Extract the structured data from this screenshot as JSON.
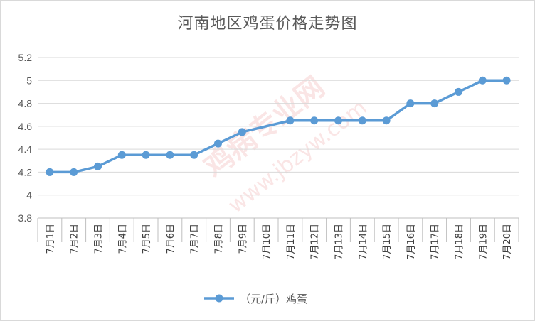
{
  "chart_data": {
    "type": "line",
    "title": "河南地区鸡蛋价格走势图",
    "categories": [
      "7月1日",
      "7月2日",
      "7月3日",
      "7月4日",
      "7月5日",
      "7月6日",
      "7月7日",
      "7月8日",
      "7月9日",
      "7月10日",
      "7月11日",
      "7月12日",
      "7月13日",
      "7月14日",
      "7月15日",
      "7月16日",
      "7月17日",
      "7月18日",
      "7月19日",
      "7月20日"
    ],
    "series": [
      {
        "name": "（元/斤）鸡蛋",
        "values": [
          4.2,
          4.2,
          4.25,
          4.35,
          4.35,
          4.35,
          4.35,
          4.45,
          4.55,
          null,
          4.65,
          4.65,
          4.65,
          4.65,
          4.65,
          4.8,
          4.8,
          4.9,
          5.0,
          5.0
        ],
        "color": "#5b9bd5"
      }
    ],
    "ylim": [
      3.8,
      5.2
    ],
    "yticks": [
      "3.8",
      "4",
      "4.2",
      "4.4",
      "4.6",
      "4.8",
      "5",
      "5.2"
    ],
    "grid": true,
    "legend": "bottom",
    "xlabel": "",
    "ylabel": ""
  },
  "watermark": {
    "text1": "鸡病专业网",
    "text2": "www.jbzyw.com"
  }
}
